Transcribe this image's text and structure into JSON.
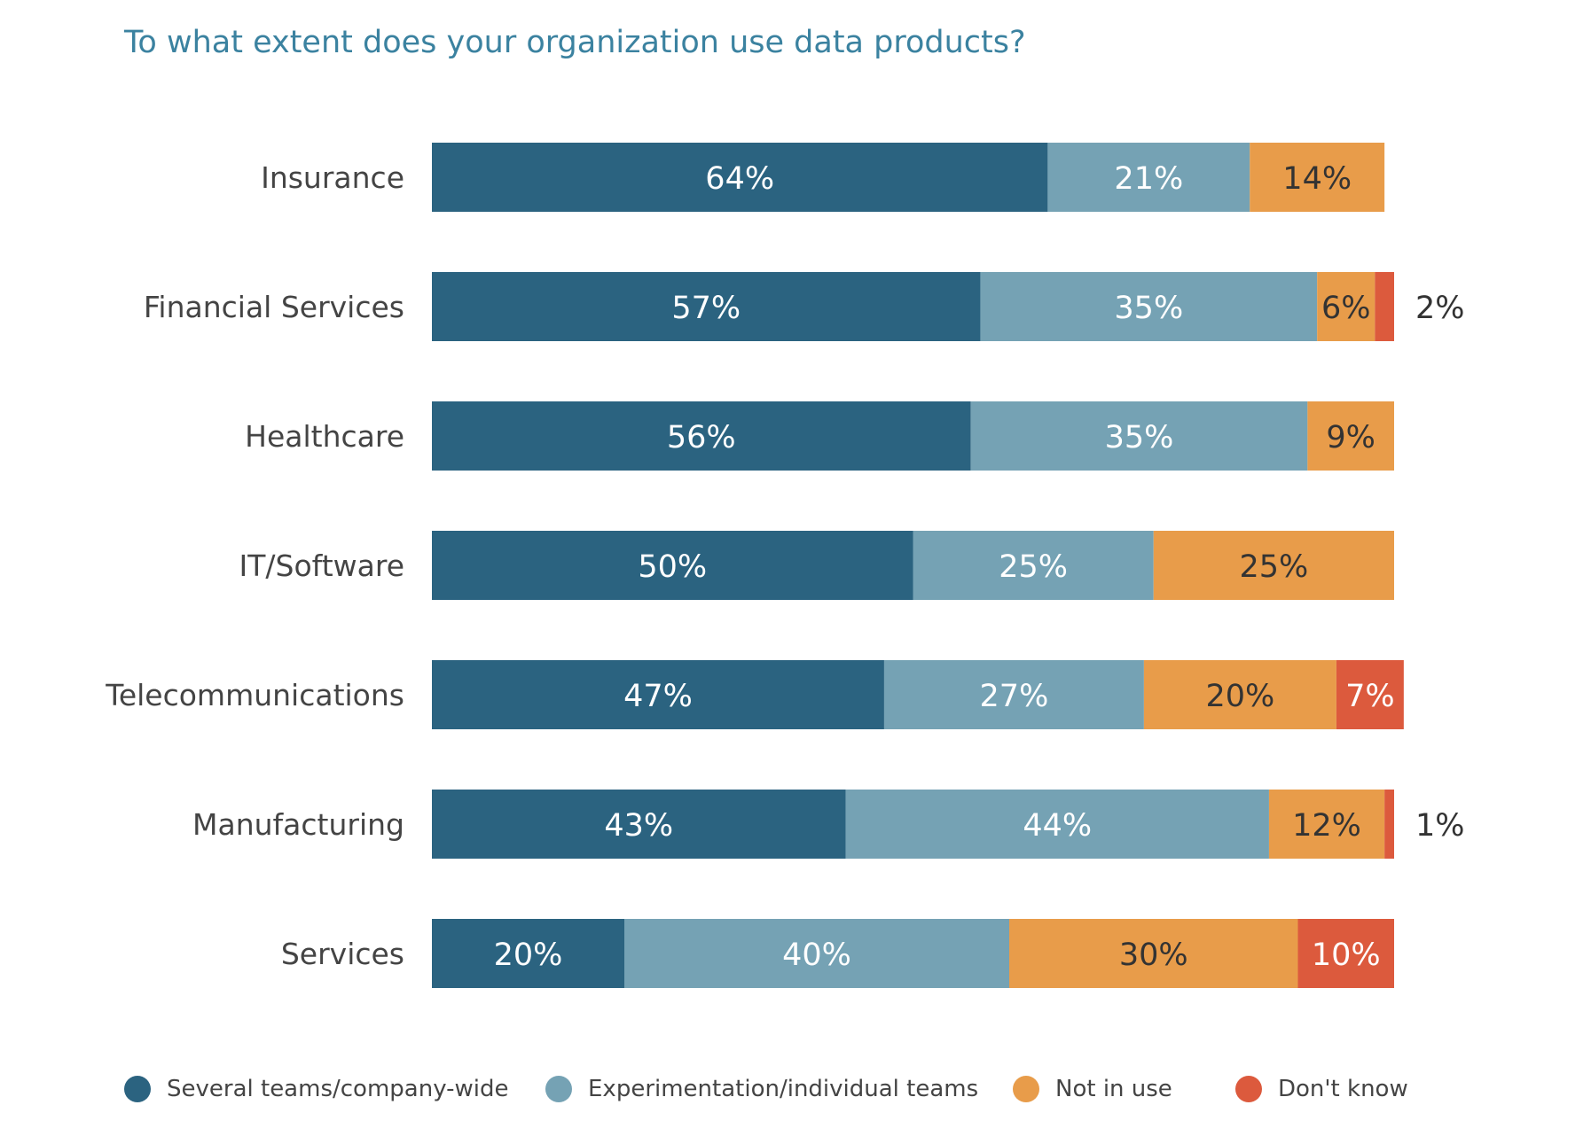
{
  "chart_data": {
    "type": "bar",
    "orientation": "horizontal",
    "stacked": true,
    "title": "To what extent does your organization use data products?",
    "categories": [
      "Insurance",
      "Financial Services",
      "Healthcare",
      "IT/Software",
      "Telecommunications",
      "Manufacturing",
      "Services"
    ],
    "series": [
      {
        "name": "Several teams/company-wide",
        "color": "#2b6380",
        "values": [
          64,
          57,
          56,
          50,
          47,
          43,
          20
        ]
      },
      {
        "name": "Experimentation/individual teams",
        "color": "#75a2b4",
        "values": [
          21,
          35,
          35,
          25,
          27,
          44,
          40
        ]
      },
      {
        "name": "Not in use",
        "color": "#e89c4a",
        "values": [
          14,
          6,
          9,
          25,
          20,
          12,
          30
        ]
      },
      {
        "name": "Don't know",
        "color": "#dc5a3d",
        "values": [
          0,
          2,
          0,
          0,
          7,
          1,
          10
        ]
      }
    ],
    "value_labels": [
      [
        "64%",
        "21%",
        "14%",
        ""
      ],
      [
        "57%",
        "35%",
        "6%",
        "2%"
      ],
      [
        "56%",
        "35%",
        "9%",
        ""
      ],
      [
        "50%",
        "25%",
        "25%",
        ""
      ],
      [
        "47%",
        "27%",
        "20%",
        "7%"
      ],
      [
        "43%",
        "44%",
        "12%",
        "1%"
      ],
      [
        "20%",
        "40%",
        "30%",
        "10%"
      ]
    ],
    "xlim": [
      0,
      100
    ],
    "grid": false,
    "legend_position": "bottom"
  }
}
